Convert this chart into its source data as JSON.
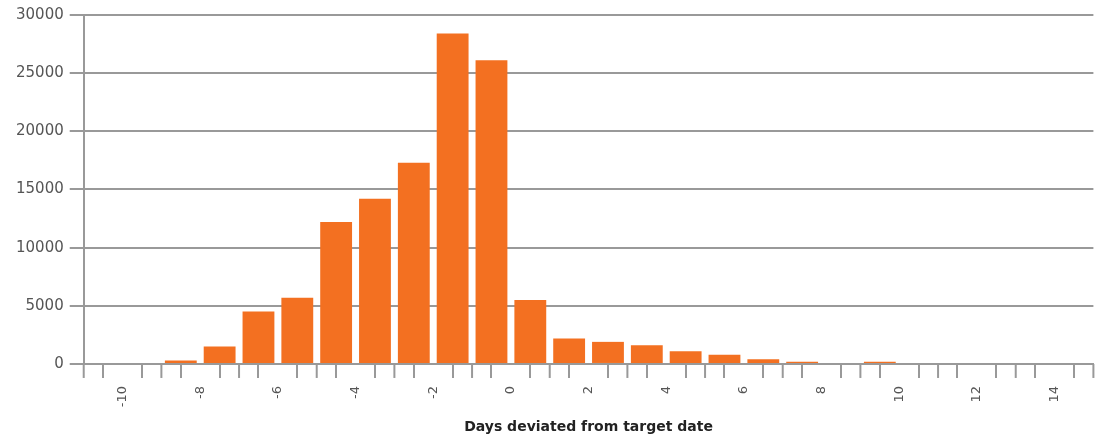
{
  "chart_data": {
    "type": "histogram",
    "xlabel": "Days deviated from target date",
    "color": "#f37021",
    "bins": [
      -11,
      -10,
      -9,
      -8,
      -7,
      -6,
      -5,
      -4,
      -3,
      -2,
      -1,
      0,
      1,
      2,
      3,
      4,
      5,
      6,
      7,
      8,
      9,
      10,
      11,
      12,
      13,
      14,
      15
    ],
    "values": [
      0,
      0,
      300,
      1500,
      4500,
      5700,
      12200,
      14200,
      17300,
      28400,
      26100,
      5500,
      2200,
      1900,
      1600,
      1100,
      800,
      400,
      200,
      0,
      200,
      0,
      0,
      0,
      0,
      0
    ],
    "xlim": [
      -11,
      15
    ],
    "xticks": [
      {
        "value": -11,
        "label": null
      },
      -10,
      {
        "value": -9,
        "label": null
      },
      -8,
      {
        "value": -7,
        "label": null
      },
      -6,
      {
        "value": -5,
        "label": null
      },
      -4,
      {
        "value": -3,
        "label": null
      },
      -2,
      {
        "value": -1,
        "label": null
      },
      0,
      {
        "value": 1,
        "label": null
      },
      2,
      {
        "value": 3,
        "label": null
      },
      4,
      {
        "value": 5,
        "label": null
      },
      6,
      {
        "value": 7,
        "label": null
      },
      8,
      {
        "value": 9,
        "label": null
      },
      10,
      {
        "value": 11,
        "label": null
      },
      12,
      {
        "value": 13,
        "label": null
      },
      14,
      {
        "value": 15,
        "label": null
      }
    ],
    "ylim": [
      0,
      30000
    ],
    "yticks": [
      0,
      5000,
      10000,
      15000,
      20000,
      25000,
      30000
    ],
    "grid": "y",
    "legend": false
  }
}
